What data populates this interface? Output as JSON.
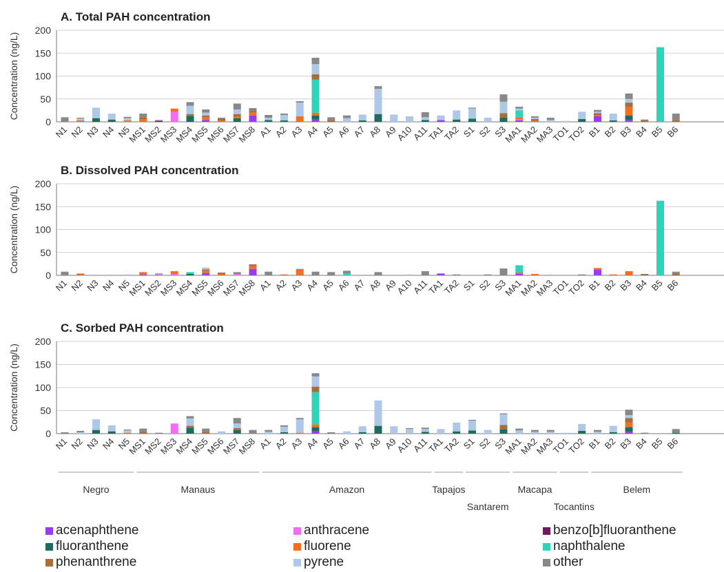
{
  "chart_data": {
    "type": "bar",
    "stacked": true,
    "categories": [
      "N1",
      "N2",
      "N3",
      "N4",
      "N5",
      "MS1",
      "MS2",
      "MS3",
      "MS4",
      "MS5",
      "MS6",
      "MS7",
      "MS8",
      "A1",
      "A2",
      "A3",
      "A4",
      "A5",
      "A6",
      "A7",
      "A8",
      "A9",
      "A10",
      "A11",
      "TA1",
      "TA2",
      "S1",
      "S2",
      "S3",
      "MA1",
      "MA2",
      "MA3",
      "TO1",
      "TO2",
      "B1",
      "B2",
      "B3",
      "B4",
      "B5",
      "B6"
    ],
    "ylabel": "Concentration (ng/L)",
    "ylim": [
      0,
      200
    ],
    "yticks": [
      0,
      50,
      100,
      150,
      200
    ],
    "legend_position": "bottom",
    "components": [
      {
        "key": "acenaphthene",
        "name": "acenaphthene",
        "color": "#9b3bf0"
      },
      {
        "key": "anthracene",
        "name": "anthracene",
        "color": "#f06ef0"
      },
      {
        "key": "benzo_b_fluoranthene",
        "name": "benzo[b]fluoranthene",
        "color": "#6e1b5e"
      },
      {
        "key": "fluoranthene",
        "name": "fluoranthene",
        "color": "#1f6b5e"
      },
      {
        "key": "fluorene",
        "name": "fluorene",
        "color": "#f07022"
      },
      {
        "key": "naphthalene",
        "name": "naphthalene",
        "color": "#2ed3b8"
      },
      {
        "key": "phenanthrene",
        "name": "phenanthrene",
        "color": "#a66e3c"
      },
      {
        "key": "pyrene",
        "name": "pyrene",
        "color": "#b0c8e8"
      },
      {
        "key": "other",
        "name": "other",
        "color": "#888888"
      }
    ],
    "panels": [
      {
        "title": "A. Total PAH concentration",
        "data": {
          "N1": {
            "other": 10
          },
          "N2": {
            "fluorene": 3,
            "pyrene": 4,
            "other": 2
          },
          "N3": {
            "fluoranthene": 8,
            "pyrene": 23
          },
          "N4": {
            "fluoranthene": 5,
            "pyrene": 13
          },
          "N5": {
            "fluorene": 3,
            "pyrene": 5,
            "other": 3
          },
          "MS1": {
            "fluorene": 6,
            "phenanthrene": 4,
            "other": 8
          },
          "MS2": {
            "benzo_b_fluoranthene": 2,
            "other": 2
          },
          "MS3": {
            "anthracene": 22,
            "fluorene": 7
          },
          "MS4": {
            "fluoranthene": 13,
            "phenanthrene": 4,
            "pyrene": 18,
            "other": 8
          },
          "MS5": {
            "acenaphthene": 4,
            "fluorene": 6,
            "phenanthrene": 4,
            "pyrene": 6,
            "other": 7
          },
          "MS6": {
            "fluorene": 3,
            "phenanthrene": 3,
            "other": 3
          },
          "MS7": {
            "fluoranthene": 8,
            "fluorene": 4,
            "phenanthrene": 5,
            "pyrene": 10,
            "other": 13
          },
          "MS8": {
            "acenaphthene": 14,
            "fluorene": 6,
            "phenanthrene": 4,
            "other": 6
          },
          "A1": {
            "fluoranthene": 4,
            "pyrene": 5,
            "other": 6
          },
          "A2": {
            "fluoranthene": 3,
            "pyrene": 12,
            "other": 3
          },
          "A3": {
            "fluorene": 12,
            "pyrene": 30,
            "other": 3
          },
          "A4": {
            "acenaphthene": 5,
            "fluoranthene": 9,
            "fluorene": 6,
            "naphthalene": 72,
            "phenanthrene": 12,
            "pyrene": 22,
            "other": 14
          },
          "A5": {
            "phenanthrene": 4,
            "other": 6
          },
          "A6": {
            "pyrene": 8,
            "other": 6
          },
          "A7": {
            "fluoranthene": 3,
            "pyrene": 13
          },
          "A8": {
            "fluoranthene": 17,
            "pyrene": 55,
            "other": 6
          },
          "A9": {
            "pyrene": 16
          },
          "A10": {
            "pyrene": 12
          },
          "A11": {
            "fluoranthene": 4,
            "pyrene": 6,
            "other": 11
          },
          "TA1": {
            "acenaphthene": 4,
            "pyrene": 10
          },
          "TA2": {
            "fluoranthene": 5,
            "pyrene": 20
          },
          "S1": {
            "fluoranthene": 7,
            "pyrene": 22,
            "other": 2
          },
          "S2": {
            "pyrene": 9
          },
          "S3": {
            "fluoranthene": 9,
            "phenanthrene": 10,
            "pyrene": 25,
            "other": 16
          },
          "MA1": {
            "acenaphthene": 3,
            "anthracene": 3,
            "fluorene": 3,
            "naphthalene": 16,
            "pyrene": 4,
            "other": 4
          },
          "MA2": {
            "fluorene": 3,
            "phenanthrene": 3,
            "pyrene": 3,
            "other": 3
          },
          "MA3": {
            "pyrene": 4,
            "other": 5
          },
          "TO1": {
            "pyrene": 2
          },
          "TO2": {
            "fluoranthene": 6,
            "pyrene": 16
          },
          "B1": {
            "acenaphthene": 12,
            "fluorene": 3,
            "phenanthrene": 4,
            "pyrene": 3,
            "other": 4
          },
          "B2": {
            "fluoranthene": 3,
            "pyrene": 15
          },
          "B3": {
            "acenaphthene": 4,
            "fluoranthene": 10,
            "fluorene": 18,
            "phenanthrene": 10,
            "pyrene": 8,
            "other": 12
          },
          "B4": {
            "phenanthrene": 3,
            "other": 2
          },
          "B5": {
            "naphthalene": 163
          },
          "B6": {
            "phenanthrene": 4,
            "other": 14
          }
        }
      },
      {
        "title": "B. Dissolved PAH concentration",
        "data": {
          "N1": {
            "other": 8
          },
          "N2": {
            "fluorene": 4
          },
          "N3": {},
          "N4": {},
          "N5": {
            "pyrene": 2
          },
          "MS1": {
            "acenaphthene": 2,
            "fluorene": 5
          },
          "MS2": {
            "anthracene": 2,
            "other": 2
          },
          "MS3": {
            "anthracene": 3,
            "fluorene": 6
          },
          "MS4": {
            "fluoranthene": 3,
            "naphthalene": 4
          },
          "MS5": {
            "acenaphthene": 5,
            "fluorene": 5,
            "phenanthrene": 3,
            "pyrene": 4
          },
          "MS6": {
            "fluorene": 3,
            "phenanthrene": 3
          },
          "MS7": {
            "anthracene": 3,
            "other": 4
          },
          "MS8": {
            "acenaphthene": 14,
            "fluorene": 6,
            "phenanthrene": 4
          },
          "A1": {
            "other": 8
          },
          "A2": {
            "fluorene": 2
          },
          "A3": {
            "fluorene": 12,
            "other": 2
          },
          "A4": {
            "other": 8
          },
          "A5": {
            "other": 7
          },
          "A6": {
            "naphthalene": 4,
            "other": 6
          },
          "A7": {},
          "A8": {
            "other": 7
          },
          "A9": {},
          "A10": {
            "pyrene": 2
          },
          "A11": {
            "other": 9
          },
          "TA1": {
            "acenaphthene": 4
          },
          "TA2": {
            "other": 2
          },
          "S1": {},
          "S2": {
            "other": 2
          },
          "S3": {
            "other": 15
          },
          "MA1": {
            "acenaphthene": 3,
            "fluorene": 3,
            "naphthalene": 16
          },
          "MA2": {
            "fluorene": 3
          },
          "MA3": {
            "pyrene": 2
          },
          "TO1": {},
          "TO2": {
            "other": 2
          },
          "B1": {
            "acenaphthene": 12,
            "fluorene": 4
          },
          "B2": {
            "fluorene": 2
          },
          "B3": {
            "fluorene": 9
          },
          "B4": {
            "phenanthrene": 3
          },
          "B5": {
            "naphthalene": 163
          },
          "B6": {
            "phenanthrene": 4,
            "other": 4
          }
        }
      },
      {
        "title": "C. Sorbed PAH concentration",
        "data": {
          "N1": {
            "other": 3
          },
          "N2": {
            "pyrene": 3,
            "other": 3
          },
          "N3": {
            "fluoranthene": 8,
            "pyrene": 23
          },
          "N4": {
            "fluoranthene": 5,
            "pyrene": 13
          },
          "N5": {
            "fluorene": 2,
            "pyrene": 5,
            "other": 2
          },
          "MS1": {
            "phenanthrene": 3,
            "other": 8
          },
          "MS2": {
            "other": 2
          },
          "MS3": {
            "anthracene": 22
          },
          "MS4": {
            "fluoranthene": 13,
            "phenanthrene": 4,
            "pyrene": 16,
            "other": 5
          },
          "MS5": {
            "phenanthrene": 4,
            "other": 7
          },
          "MS6": {
            "pyrene": 5
          },
          "MS7": {
            "fluoranthene": 8,
            "phenanthrene": 4,
            "pyrene": 10,
            "other": 12
          },
          "MS8": {
            "other": 8
          },
          "A1": {
            "pyrene": 4,
            "other": 4
          },
          "A2": {
            "fluoranthene": 3,
            "pyrene": 12,
            "other": 3
          },
          "A3": {
            "fluorene": 2,
            "pyrene": 29,
            "other": 3
          },
          "A4": {
            "acenaphthene": 5,
            "fluoranthene": 9,
            "fluorene": 6,
            "naphthalene": 70,
            "phenanthrene": 12,
            "pyrene": 22,
            "other": 7
          },
          "A5": {
            "other": 3
          },
          "A6": {
            "pyrene": 5
          },
          "A7": {
            "fluoranthene": 3,
            "pyrene": 13
          },
          "A8": {
            "fluoranthene": 17,
            "pyrene": 55
          },
          "A9": {
            "pyrene": 16
          },
          "A10": {
            "pyrene": 10,
            "other": 2
          },
          "A11": {
            "fluoranthene": 4,
            "pyrene": 6,
            "other": 3
          },
          "TA1": {
            "pyrene": 10
          },
          "TA2": {
            "fluoranthene": 5,
            "pyrene": 19
          },
          "S1": {
            "fluoranthene": 7,
            "pyrene": 21,
            "other": 2
          },
          "S2": {
            "pyrene": 8
          },
          "S3": {
            "fluoranthene": 9,
            "phenanthrene": 10,
            "pyrene": 23,
            "other": 2
          },
          "MA1": {
            "pyrene": 7,
            "other": 4
          },
          "MA2": {
            "pyrene": 4,
            "other": 4
          },
          "MA3": {
            "pyrene": 4,
            "other": 4
          },
          "TO1": {
            "pyrene": 2
          },
          "TO2": {
            "fluoranthene": 6,
            "pyrene": 15
          },
          "B1": {
            "pyrene": 4,
            "other": 4
          },
          "B2": {
            "fluoranthene": 3,
            "pyrene": 14
          },
          "B3": {
            "acenaphthene": 4,
            "fluoranthene": 10,
            "fluorene": 10,
            "phenanthrene": 10,
            "pyrene": 6,
            "other": 12
          },
          "B4": {
            "other": 2
          },
          "B5": {},
          "B6": {
            "fluoranthene": 2,
            "other": 8
          }
        }
      }
    ],
    "groups": [
      {
        "name": "Negro",
        "from": "N1",
        "to": "N5",
        "row": 1
      },
      {
        "name": "Manaus",
        "from": "MS1",
        "to": "MS8",
        "row": 1
      },
      {
        "name": "Amazon",
        "from": "A1",
        "to": "A11",
        "row": 1
      },
      {
        "name": "Tapajos",
        "from": "TA1",
        "to": "TA2",
        "row": 1
      },
      {
        "name": "Santarem",
        "from": "S1",
        "to": "S3",
        "row": 2
      },
      {
        "name": "Macapa",
        "from": "MA1",
        "to": "MA3",
        "row": 1
      },
      {
        "name": "Tocantins",
        "from": "TO1",
        "to": "TO2",
        "row": 2
      },
      {
        "name": "Belem",
        "from": "B1",
        "to": "B6",
        "row": 1
      }
    ]
  }
}
